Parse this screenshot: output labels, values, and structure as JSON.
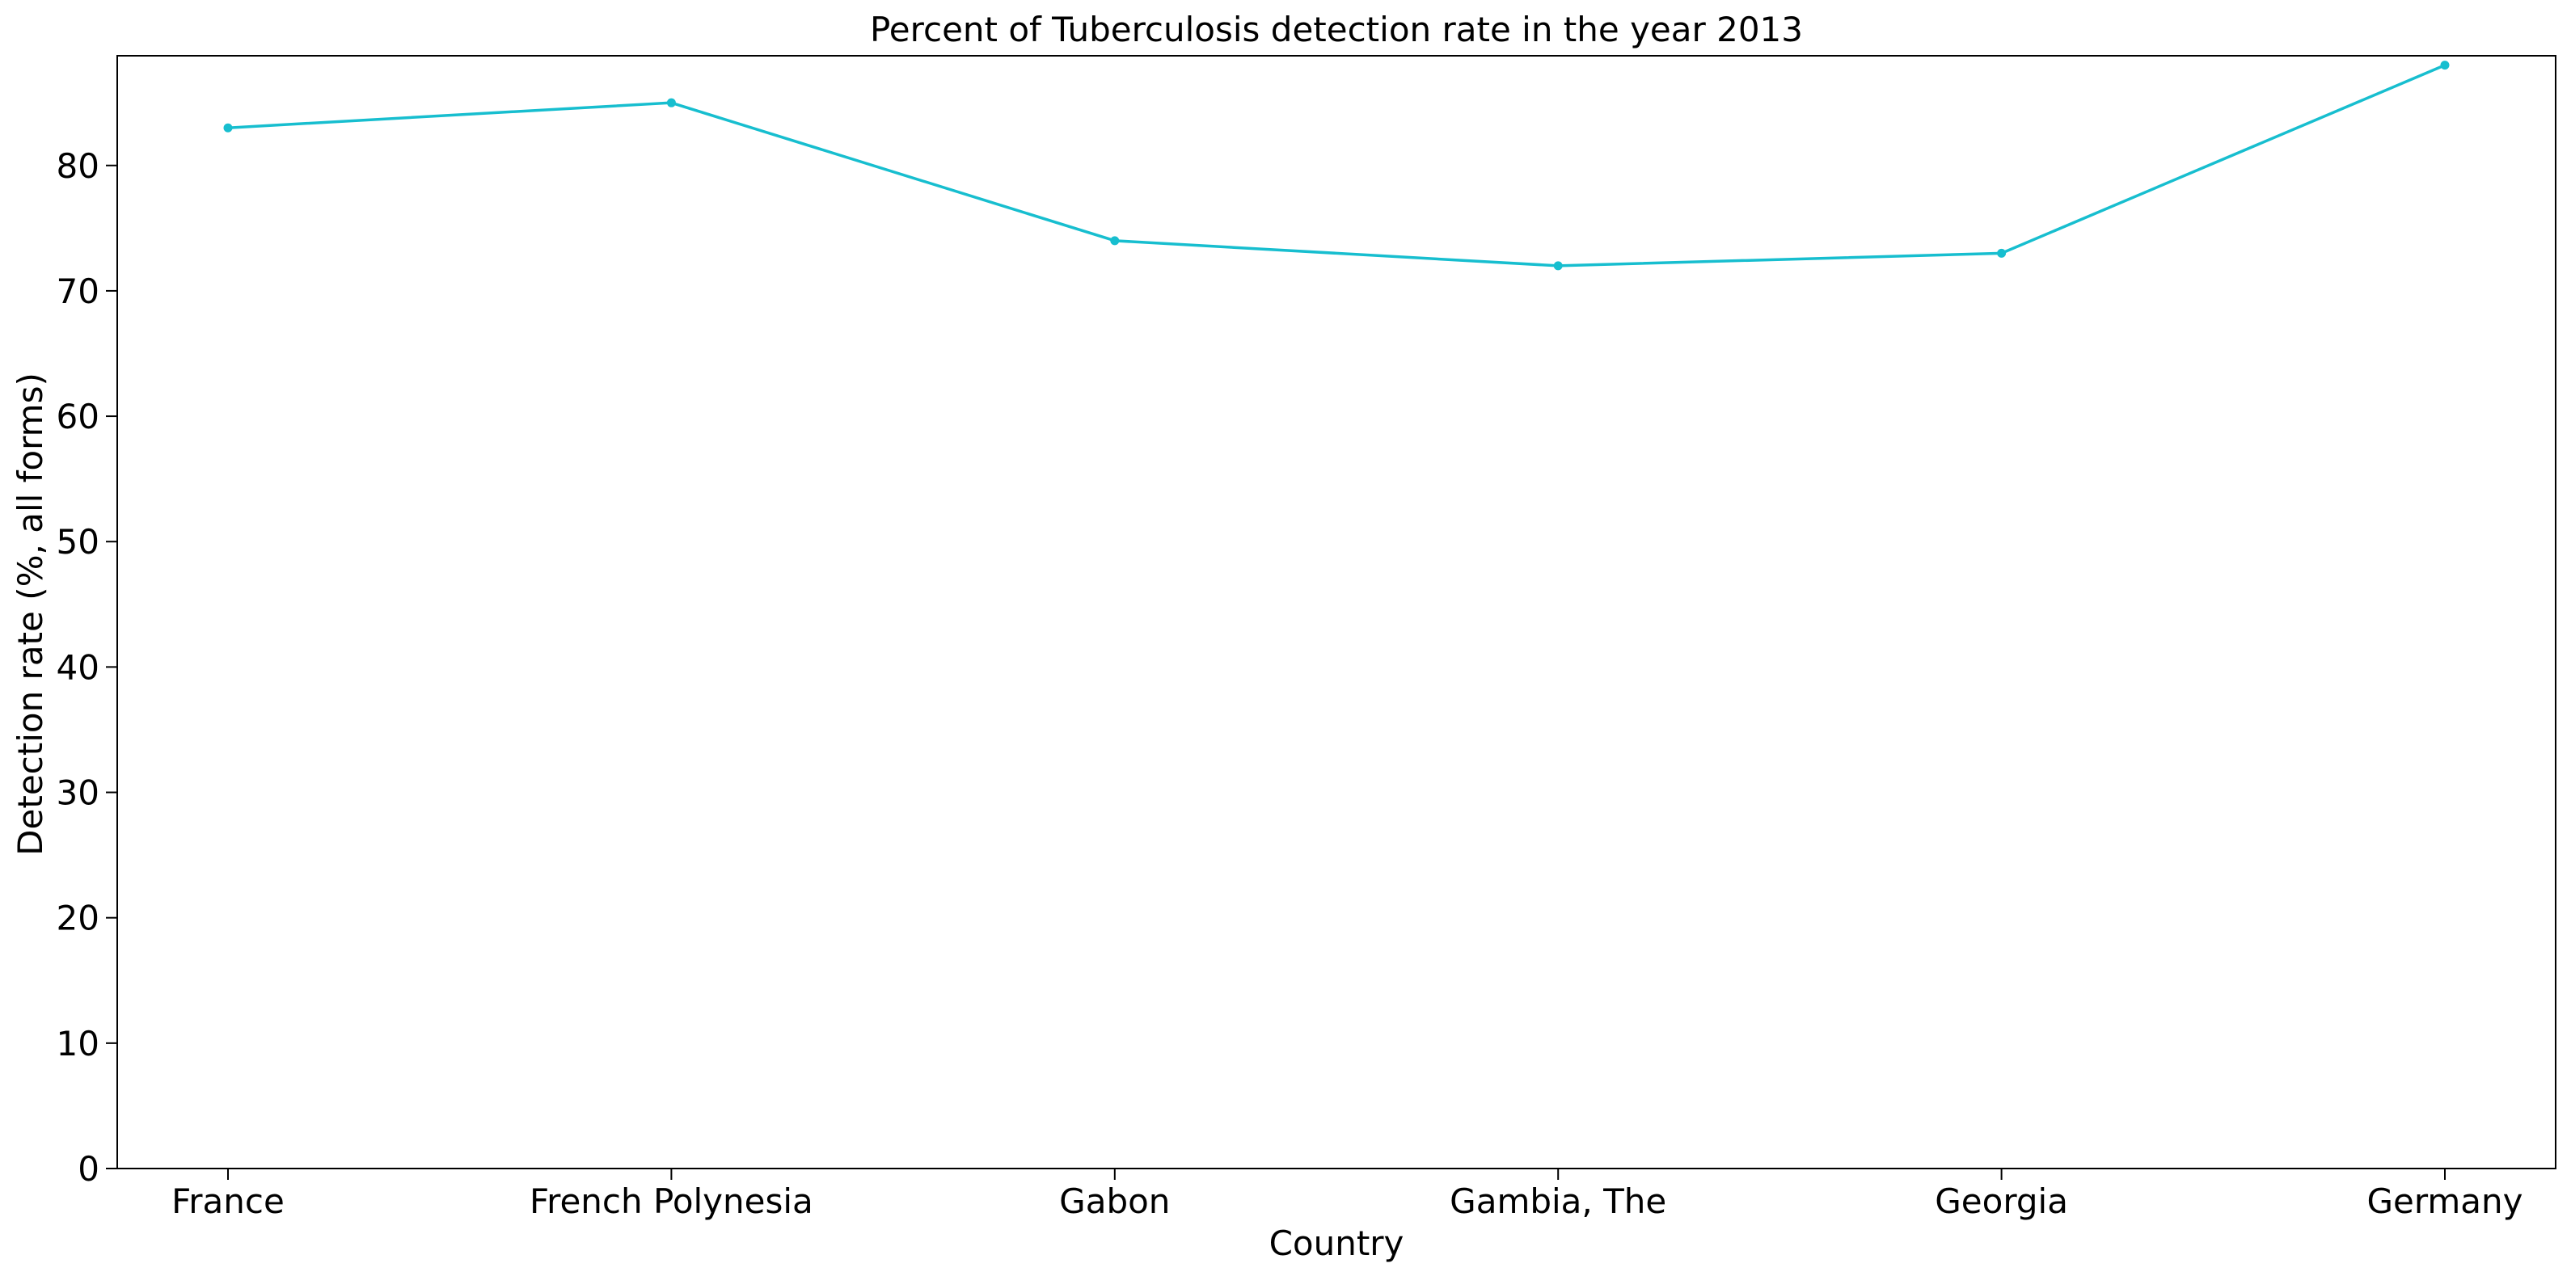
{
  "chart_data": {
    "type": "line",
    "title": "Percent of Tuberculosis detection rate in the year 2013",
    "xlabel": "Country",
    "ylabel": "Detection rate (%, all forms)",
    "categories": [
      "France",
      "French Polynesia",
      "Gabon",
      "Gambia, The",
      "Georgia",
      "Germany"
    ],
    "series": [
      {
        "values": [
          83,
          85,
          74,
          72,
          73,
          88
        ],
        "color": "#17becf",
        "marker": "circle"
      }
    ],
    "yticks": [
      "0",
      "10",
      "20",
      "30",
      "40",
      "50",
      "60",
      "70",
      "80"
    ],
    "ylim": [
      0,
      88.75
    ],
    "grid": false,
    "legend": "none"
  }
}
